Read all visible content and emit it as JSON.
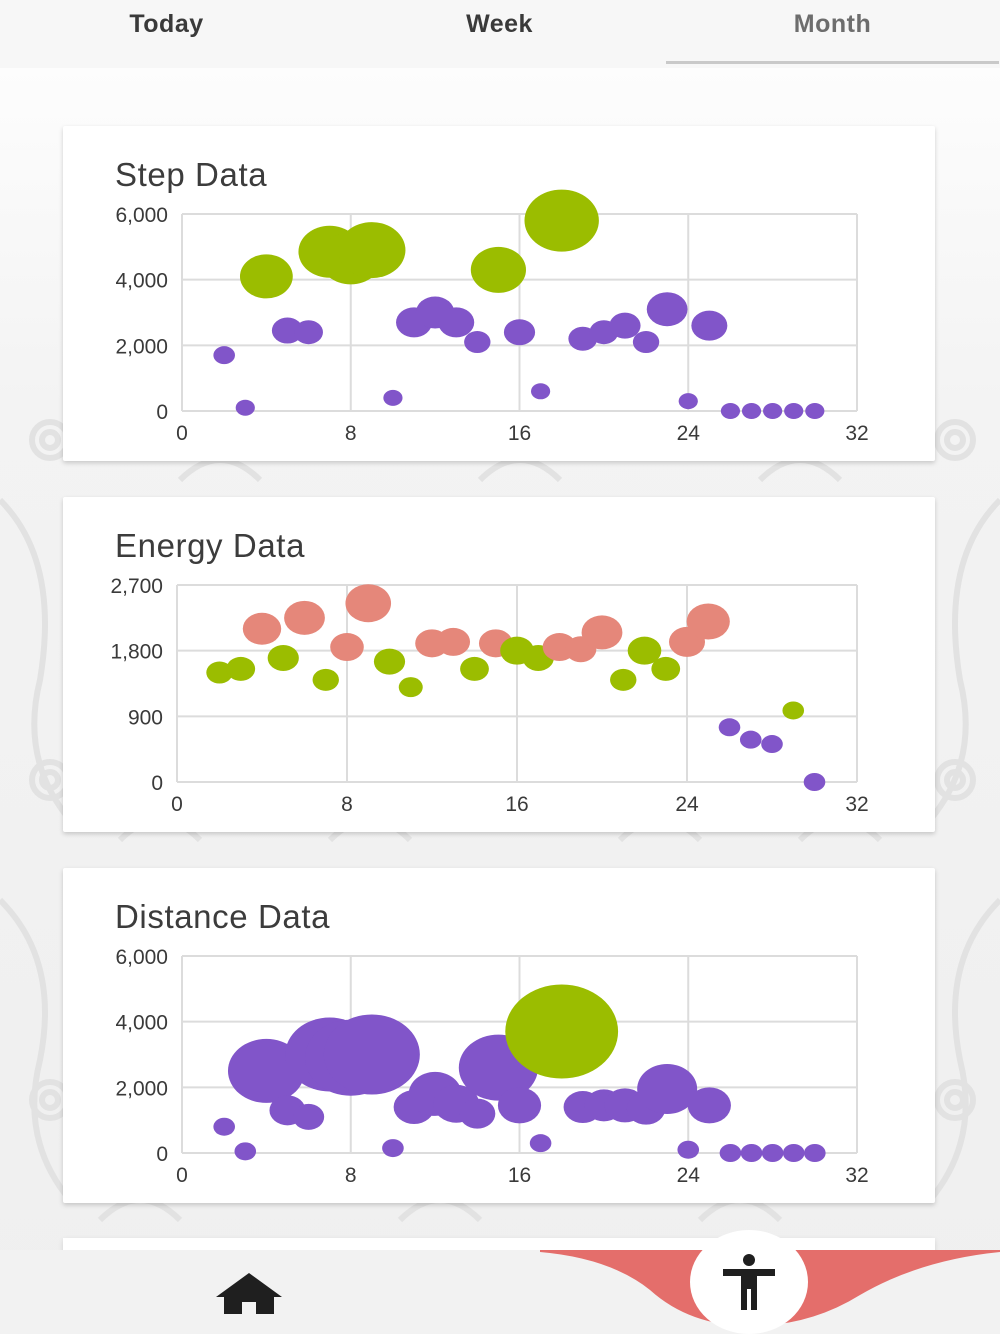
{
  "tabs": [
    {
      "label": "Today",
      "active": false
    },
    {
      "label": "Week",
      "active": false
    },
    {
      "label": "Month",
      "active": true
    }
  ],
  "colors": {
    "purple": "#8155c9",
    "green": "#9bbd00",
    "salmon": "#e5877a",
    "accent": "#e46e6b"
  },
  "chart_data": [
    {
      "type": "bubble",
      "title": "Step Data",
      "xlim": [
        0,
        32
      ],
      "ylim": [
        0,
        6000
      ],
      "x_ticks": [
        "0",
        "8",
        "16",
        "24",
        "32"
      ],
      "y_ticks": [
        "0",
        "2,000",
        "4,000",
        "6,000"
      ],
      "grid": true,
      "points": [
        {
          "x": 2,
          "y": 1700,
          "r": 9,
          "color": "purple"
        },
        {
          "x": 3,
          "y": 100,
          "r": 8,
          "color": "purple"
        },
        {
          "x": 4,
          "y": 4100,
          "r": 22,
          "color": "green"
        },
        {
          "x": 5,
          "y": 2450,
          "r": 13,
          "color": "purple"
        },
        {
          "x": 6,
          "y": 2400,
          "r": 12,
          "color": "purple"
        },
        {
          "x": 7,
          "y": 4850,
          "r": 26,
          "color": "green"
        },
        {
          "x": 8,
          "y": 4650,
          "r": 26,
          "color": "green"
        },
        {
          "x": 9,
          "y": 4900,
          "r": 28,
          "color": "green"
        },
        {
          "x": 10,
          "y": 400,
          "r": 8,
          "color": "purple"
        },
        {
          "x": 11,
          "y": 2700,
          "r": 15,
          "color": "purple"
        },
        {
          "x": 12,
          "y": 3000,
          "r": 16,
          "color": "purple"
        },
        {
          "x": 13,
          "y": 2700,
          "r": 15,
          "color": "purple"
        },
        {
          "x": 14,
          "y": 2100,
          "r": 11,
          "color": "purple"
        },
        {
          "x": 15,
          "y": 4300,
          "r": 23,
          "color": "green"
        },
        {
          "x": 16,
          "y": 2400,
          "r": 13,
          "color": "purple"
        },
        {
          "x": 17,
          "y": 600,
          "r": 8,
          "color": "purple"
        },
        {
          "x": 18,
          "y": 5800,
          "r": 31,
          "color": "green"
        },
        {
          "x": 19,
          "y": 2200,
          "r": 12,
          "color": "purple"
        },
        {
          "x": 20,
          "y": 2400,
          "r": 12,
          "color": "purple"
        },
        {
          "x": 21,
          "y": 2600,
          "r": 13,
          "color": "purple"
        },
        {
          "x": 22,
          "y": 2100,
          "r": 11,
          "color": "purple"
        },
        {
          "x": 23,
          "y": 3100,
          "r": 17,
          "color": "purple"
        },
        {
          "x": 24,
          "y": 300,
          "r": 8,
          "color": "purple"
        },
        {
          "x": 25,
          "y": 2600,
          "r": 15,
          "color": "purple"
        },
        {
          "x": 26,
          "y": 0,
          "r": 8,
          "color": "purple"
        },
        {
          "x": 27,
          "y": 0,
          "r": 8,
          "color": "purple"
        },
        {
          "x": 28,
          "y": 0,
          "r": 8,
          "color": "purple"
        },
        {
          "x": 29,
          "y": 0,
          "r": 8,
          "color": "purple"
        },
        {
          "x": 30,
          "y": 0,
          "r": 8,
          "color": "purple"
        }
      ]
    },
    {
      "type": "bubble",
      "title": "Energy Data",
      "xlim": [
        0,
        32
      ],
      "ylim": [
        0,
        2700
      ],
      "x_ticks": [
        "0",
        "8",
        "16",
        "24",
        "32"
      ],
      "y_ticks": [
        "0",
        "900",
        "1,800",
        "2,700"
      ],
      "grid": true,
      "points": [
        {
          "x": 2,
          "y": 1500,
          "r": 11,
          "color": "green"
        },
        {
          "x": 3,
          "y": 1550,
          "r": 12,
          "color": "green"
        },
        {
          "x": 4,
          "y": 2100,
          "r": 16,
          "color": "salmon"
        },
        {
          "x": 5,
          "y": 1700,
          "r": 13,
          "color": "green"
        },
        {
          "x": 6,
          "y": 2250,
          "r": 17,
          "color": "salmon"
        },
        {
          "x": 7,
          "y": 1400,
          "r": 11,
          "color": "green"
        },
        {
          "x": 8,
          "y": 1850,
          "r": 14,
          "color": "salmon"
        },
        {
          "x": 9,
          "y": 2450,
          "r": 19,
          "color": "salmon"
        },
        {
          "x": 10,
          "y": 1650,
          "r": 13,
          "color": "green"
        },
        {
          "x": 11,
          "y": 1300,
          "r": 10,
          "color": "green"
        },
        {
          "x": 12,
          "y": 1900,
          "r": 14,
          "color": "salmon"
        },
        {
          "x": 13,
          "y": 1920,
          "r": 14,
          "color": "salmon"
        },
        {
          "x": 14,
          "y": 1550,
          "r": 12,
          "color": "green"
        },
        {
          "x": 15,
          "y": 1900,
          "r": 14,
          "color": "salmon"
        },
        {
          "x": 16,
          "y": 1800,
          "r": 14,
          "color": "green"
        },
        {
          "x": 17,
          "y": 1700,
          "r": 13,
          "color": "green"
        },
        {
          "x": 18,
          "y": 1850,
          "r": 14,
          "color": "salmon"
        },
        {
          "x": 19,
          "y": 1820,
          "r": 13,
          "color": "salmon"
        },
        {
          "x": 20,
          "y": 2050,
          "r": 17,
          "color": "salmon"
        },
        {
          "x": 21,
          "y": 1400,
          "r": 11,
          "color": "green"
        },
        {
          "x": 22,
          "y": 1800,
          "r": 14,
          "color": "green"
        },
        {
          "x": 23,
          "y": 1550,
          "r": 12,
          "color": "green"
        },
        {
          "x": 24,
          "y": 1920,
          "r": 15,
          "color": "salmon"
        },
        {
          "x": 25,
          "y": 2200,
          "r": 18,
          "color": "salmon"
        },
        {
          "x": 26,
          "y": 750,
          "r": 9,
          "color": "purple"
        },
        {
          "x": 27,
          "y": 580,
          "r": 9,
          "color": "purple"
        },
        {
          "x": 28,
          "y": 520,
          "r": 9,
          "color": "purple"
        },
        {
          "x": 29,
          "y": 980,
          "r": 9,
          "color": "green"
        },
        {
          "x": 30,
          "y": 0,
          "r": 9,
          "color": "purple"
        }
      ]
    },
    {
      "type": "bubble",
      "title": "Distance Data",
      "xlim": [
        0,
        32
      ],
      "ylim": [
        0,
        6000
      ],
      "x_ticks": [
        "0",
        "8",
        "16",
        "24",
        "32"
      ],
      "y_ticks": [
        "0",
        "2,000",
        "4,000",
        "6,000"
      ],
      "grid": true,
      "points": [
        {
          "x": 2,
          "y": 800,
          "r": 9,
          "color": "purple"
        },
        {
          "x": 3,
          "y": 50,
          "r": 9,
          "color": "purple"
        },
        {
          "x": 4,
          "y": 2500,
          "r": 32,
          "color": "purple"
        },
        {
          "x": 5,
          "y": 1300,
          "r": 15,
          "color": "purple"
        },
        {
          "x": 6,
          "y": 1100,
          "r": 13,
          "color": "purple"
        },
        {
          "x": 7,
          "y": 3000,
          "r": 37,
          "color": "purple"
        },
        {
          "x": 8,
          "y": 2900,
          "r": 38,
          "color": "purple"
        },
        {
          "x": 9,
          "y": 3000,
          "r": 40,
          "color": "purple"
        },
        {
          "x": 10,
          "y": 150,
          "r": 9,
          "color": "purple"
        },
        {
          "x": 11,
          "y": 1400,
          "r": 17,
          "color": "purple"
        },
        {
          "x": 12,
          "y": 1800,
          "r": 22,
          "color": "purple"
        },
        {
          "x": 13,
          "y": 1500,
          "r": 19,
          "color": "purple"
        },
        {
          "x": 14,
          "y": 1200,
          "r": 15,
          "color": "purple"
        },
        {
          "x": 15,
          "y": 2600,
          "r": 33,
          "color": "purple"
        },
        {
          "x": 16,
          "y": 1450,
          "r": 18,
          "color": "purple"
        },
        {
          "x": 17,
          "y": 300,
          "r": 9,
          "color": "purple"
        },
        {
          "x": 18,
          "y": 3700,
          "r": 47,
          "color": "green"
        },
        {
          "x": 19,
          "y": 1400,
          "r": 16,
          "color": "purple"
        },
        {
          "x": 20,
          "y": 1450,
          "r": 16,
          "color": "purple"
        },
        {
          "x": 21,
          "y": 1450,
          "r": 17,
          "color": "purple"
        },
        {
          "x": 22,
          "y": 1350,
          "r": 16,
          "color": "purple"
        },
        {
          "x": 23,
          "y": 1950,
          "r": 25,
          "color": "purple"
        },
        {
          "x": 24,
          "y": 100,
          "r": 9,
          "color": "purple"
        },
        {
          "x": 25,
          "y": 1450,
          "r": 18,
          "color": "purple"
        },
        {
          "x": 26,
          "y": 0,
          "r": 9,
          "color": "purple"
        },
        {
          "x": 27,
          "y": 0,
          "r": 9,
          "color": "purple"
        },
        {
          "x": 28,
          "y": 0,
          "r": 9,
          "color": "purple"
        },
        {
          "x": 29,
          "y": 0,
          "r": 9,
          "color": "purple"
        },
        {
          "x": 30,
          "y": 0,
          "r": 9,
          "color": "purple"
        }
      ]
    }
  ],
  "nav": {
    "home_icon": "home-icon",
    "center_icon": "accessibility-icon"
  }
}
